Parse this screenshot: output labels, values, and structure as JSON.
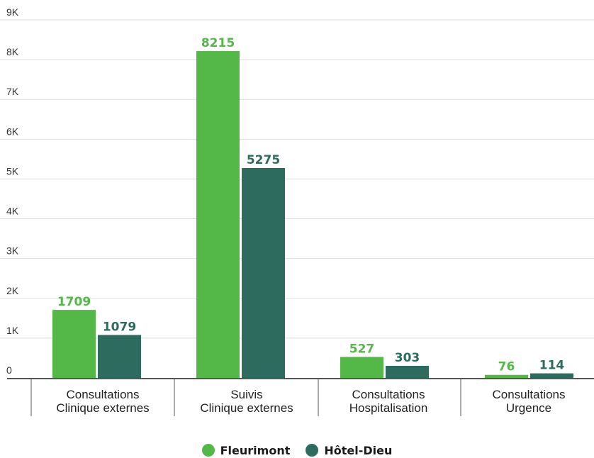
{
  "chart_data": {
    "type": "bar",
    "categories": [
      [
        "Consultations",
        "Clinique externes"
      ],
      [
        "Suivis",
        "Clinique externes"
      ],
      [
        "Consultations",
        "Hospitalisation"
      ],
      [
        "Consultations",
        "Urgence"
      ]
    ],
    "series": [
      {
        "name": "Fleurimont",
        "color": "#53b848",
        "values": [
          1709,
          8215,
          527,
          76
        ]
      },
      {
        "name": "Hôtel-Dieu",
        "color": "#2d6b5e",
        "values": [
          1079,
          5275,
          303,
          114
        ]
      }
    ],
    "ylim": [
      0,
      9000
    ],
    "yticks": [
      0,
      1000,
      2000,
      3000,
      4000,
      5000,
      6000,
      7000,
      8000,
      9000
    ],
    "ytick_labels": [
      "0",
      "1K",
      "2K",
      "3K",
      "4K",
      "5K",
      "6K",
      "7K",
      "8K",
      "9K"
    ],
    "grid": true,
    "legend_position": "bottom-center"
  }
}
